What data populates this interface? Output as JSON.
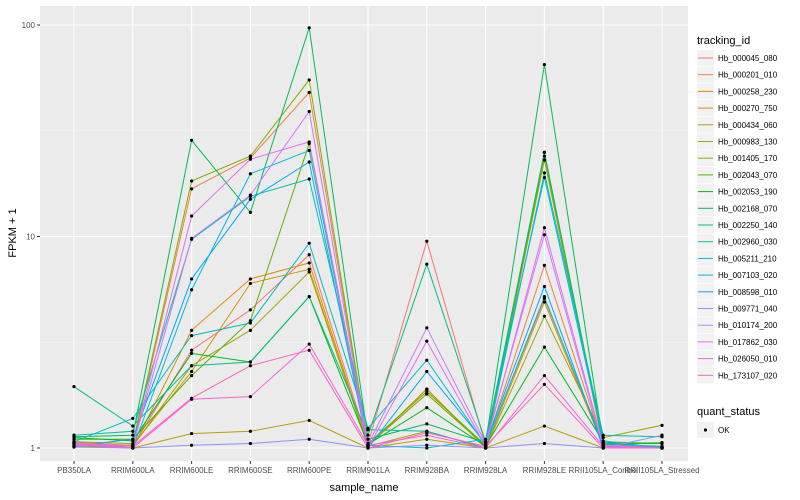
{
  "chart_data": {
    "type": "line",
    "xlabel": "sample_name",
    "ylabel": "FPKM + 1",
    "y_scale": "log10",
    "ylim": [
      1,
      100
    ],
    "y_ticks": [
      {
        "value": 1,
        "label": "1"
      },
      {
        "value": 10,
        "label": "10"
      },
      {
        "value": 100,
        "label": "100"
      }
    ],
    "categories": [
      "PB350LA",
      "RRIM600LA",
      "RRIM600LE",
      "RRIM600SE",
      "RRIM600PE",
      "RRIM901LA",
      "RRIM928BA",
      "RRIM928LA",
      "RRIM928LE",
      "RRII105LA_Control",
      "RRII105LA_Stressed"
    ],
    "legend": {
      "title": "tracking_id",
      "position": "right"
    },
    "shape_legend": {
      "title": "quant_status",
      "entries": [
        "OK"
      ]
    },
    "series": [
      {
        "name": "Hb_000045_080",
        "color": "#F8766D",
        "values": [
          1.05,
          1.02,
          2.9,
          4.5,
          8.2,
          1.05,
          9.5,
          1.03,
          5.2,
          1.02,
          1.0
        ]
      },
      {
        "name": "Hb_000201_010",
        "color": "#EE8044",
        "values": [
          1.04,
          1.03,
          16.8,
          23.5,
          48,
          1.03,
          1.8,
          1.02,
          7.3,
          1.03,
          1.01
        ]
      },
      {
        "name": "Hb_000258_230",
        "color": "#E18A00",
        "values": [
          1.03,
          1.0,
          3.6,
          6.3,
          7.5,
          1.02,
          1.9,
          1.0,
          4.9,
          1.02,
          1.01
        ]
      },
      {
        "name": "Hb_000270_750",
        "color": "#CF9400",
        "values": [
          1.06,
          1.03,
          2.3,
          6.0,
          7.0,
          1.02,
          1.9,
          1.0,
          23,
          1.02,
          1.0
        ]
      },
      {
        "name": "Hb_000434_060",
        "color": "#BB9D00",
        "values": [
          1.02,
          1.0,
          1.17,
          1.2,
          1.35,
          1.0,
          1.1,
          1.0,
          1.27,
          1.0,
          1.0
        ]
      },
      {
        "name": "Hb_000983_130",
        "color": "#A3A500",
        "values": [
          1.05,
          1.02,
          2.45,
          3.6,
          6.8,
          1.02,
          1.2,
          1.0,
          4.2,
          1.12,
          1.28
        ]
      },
      {
        "name": "Hb_001405_170",
        "color": "#85AD00",
        "values": [
          1.07,
          1.05,
          18.3,
          24,
          55,
          1.04,
          1.8,
          1.02,
          25,
          1.05,
          1.06
        ]
      },
      {
        "name": "Hb_002043_070",
        "color": "#5BB300",
        "values": [
          1.1,
          1.1,
          2.2,
          4.0,
          27.5,
          1.05,
          1.85,
          1.03,
          24,
          1.07,
          1.05
        ]
      },
      {
        "name": "Hb_002053_190",
        "color": "#00B81F",
        "values": [
          1.12,
          1.08,
          2.8,
          2.55,
          5.2,
          1.04,
          1.55,
          1.02,
          3.0,
          1.07,
          1.0
        ]
      },
      {
        "name": "Hb_002168_070",
        "color": "#00BC56",
        "values": [
          1.13,
          1.15,
          28.5,
          13,
          97,
          1.1,
          1.3,
          1.06,
          65,
          1.05,
          1.05
        ]
      },
      {
        "name": "Hb_002250_140",
        "color": "#00BF7D",
        "values": [
          1.95,
          1.27,
          2.45,
          2.55,
          5.2,
          1.15,
          7.4,
          1.07,
          25,
          1.04,
          1.02
        ]
      },
      {
        "name": "Hb_002960_030",
        "color": "#00C19F",
        "values": [
          1.15,
          1.2,
          9.7,
          15.5,
          18.7,
          1.22,
          1.2,
          1.0,
          20,
          1.15,
          1.13
        ]
      },
      {
        "name": "Hb_005211_210",
        "color": "#00BFC4",
        "values": [
          1.07,
          1.38,
          3.4,
          3.9,
          9.3,
          1.24,
          2.6,
          1.03,
          5.1,
          1.05,
          1.01
        ]
      },
      {
        "name": "Hb_007103_020",
        "color": "#00B8E5",
        "values": [
          1.06,
          1.0,
          5.6,
          19.8,
          25.5,
          1.03,
          1.0,
          1.1,
          19,
          1.08,
          1.0
        ]
      },
      {
        "name": "Hb_008598_010",
        "color": "#00A9FF",
        "values": [
          1.02,
          1.1,
          6.3,
          15,
          22.5,
          1.0,
          2.3,
          1.05,
          5.8,
          1.0,
          1.01
        ]
      },
      {
        "name": "Hb_009771_040",
        "color": "#8F91FF",
        "values": [
          1.01,
          1.0,
          1.03,
          1.05,
          1.1,
          1.0,
          1.03,
          1.0,
          1.05,
          1.0,
          1.15
        ]
      },
      {
        "name": "Hb_010174_200",
        "color": "#C77CFF",
        "values": [
          1.05,
          1.02,
          9.8,
          15.7,
          39,
          1.04,
          3.7,
          1.05,
          10.2,
          1.01,
          1.0
        ]
      },
      {
        "name": "Hb_017862_030",
        "color": "#E76BF3",
        "values": [
          1.03,
          1.02,
          12.5,
          23.2,
          28,
          1.0,
          3.2,
          1.02,
          11,
          1.03,
          1.0
        ]
      },
      {
        "name": "Hb_026050_010",
        "color": "#FA62DB",
        "values": [
          1.04,
          1.0,
          1.7,
          1.75,
          3.1,
          1.03,
          1.15,
          1.0,
          2.2,
          1.02,
          1.0
        ]
      },
      {
        "name": "Hb_173107_020",
        "color": "#FF62BC",
        "values": [
          1.06,
          1.02,
          1.72,
          2.45,
          2.9,
          1.0,
          1.18,
          1.02,
          2.0,
          1.0,
          1.0
        ]
      }
    ]
  }
}
